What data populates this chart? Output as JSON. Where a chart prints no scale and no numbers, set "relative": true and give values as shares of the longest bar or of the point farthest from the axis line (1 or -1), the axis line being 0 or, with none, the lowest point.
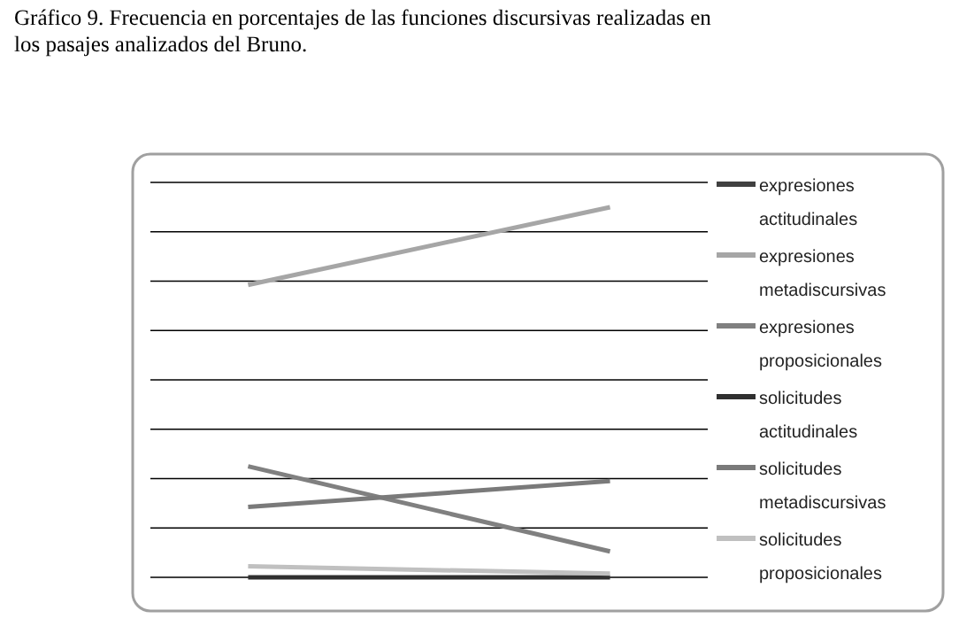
{
  "chart_data": {
    "type": "line",
    "title": "Gráfico 9. Frecuencia en porcentajes de las funciones discursivas realizadas en los pasajes analizados del Bruno.",
    "categories": [
      null,
      null
    ],
    "relative": true,
    "grid": "y",
    "legend": "right",
    "marker": "none",
    "line_style": "solid",
    "series": [
      {
        "name": "expresiones actitudinales",
        "color": "#404040",
        "values": [
          null,
          null
        ]
      },
      {
        "name": "expresiones metadiscursivas",
        "color": "#a6a6a6",
        "values": [
          0.79,
          1
        ]
      },
      {
        "name": "expresiones proposicionales",
        "color": "#808080",
        "values": [
          0.3,
          0.07
        ]
      },
      {
        "name": "solicitudes actitudinales",
        "color": "#303030",
        "values": [
          0,
          0
        ]
      },
      {
        "name": "solicitudes metadiscursivas",
        "color": "#7a7a7a",
        "values": [
          0.19,
          0.26
        ]
      },
      {
        "name": "solicitudes proposicionales",
        "color": "#c0c0c0",
        "values": [
          0.03,
          0.01
        ]
      }
    ]
  }
}
